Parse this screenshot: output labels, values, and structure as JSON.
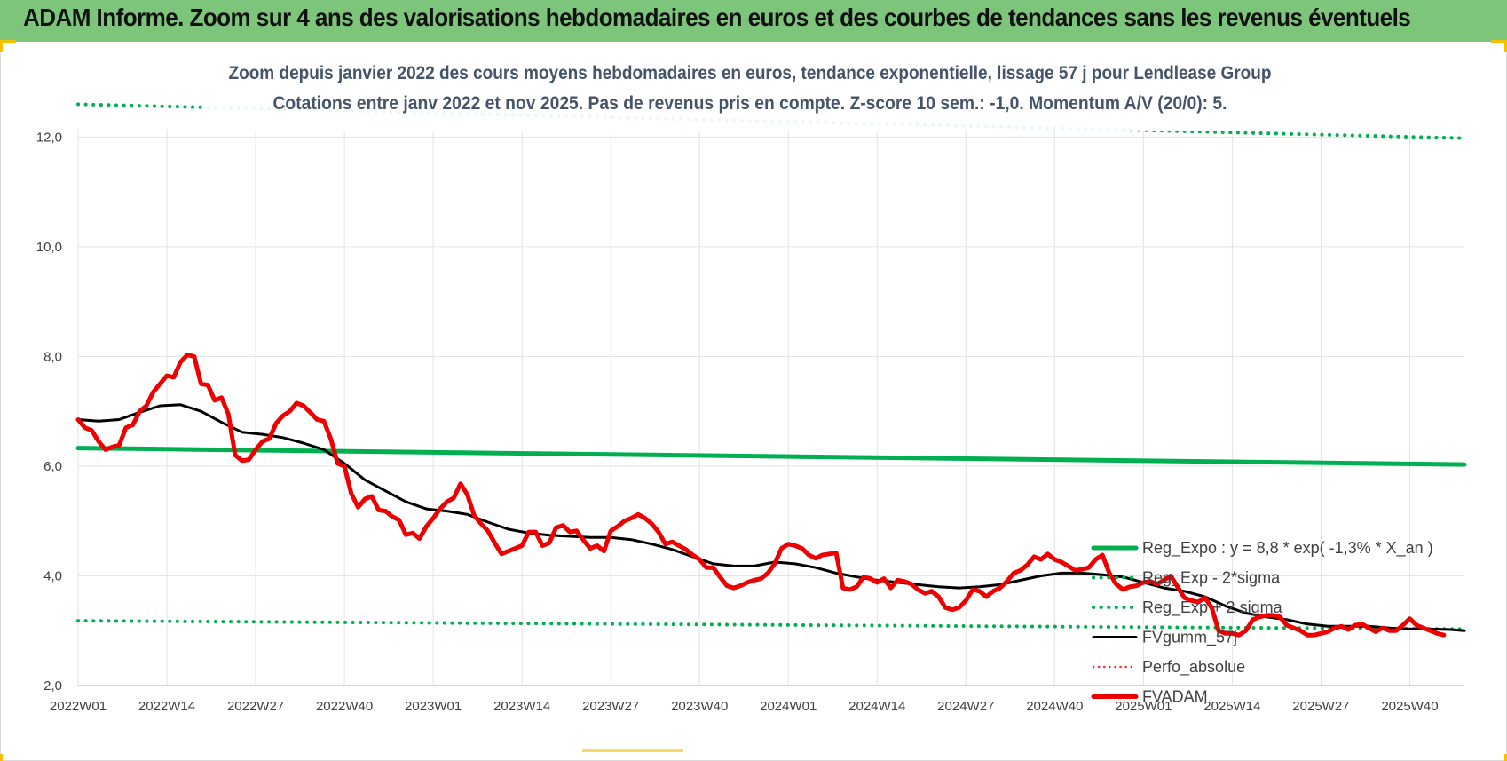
{
  "banner": {
    "title": "ADAM Informe. Zoom sur 4 ans des valorisations hebdomadaires en euros et des courbes de tendances sans les revenus éventuels"
  },
  "colors": {
    "banner": "#7dc57a",
    "regression": "#00b050",
    "price": "#ee0000",
    "smooth": "#000000",
    "perf": "#ee3333",
    "accent": "#f2c200"
  },
  "chart_data": {
    "type": "line",
    "title": "Zoom depuis janvier 2022 des cours moyens hebdomadaires en euros, tendance exponentielle, lissage 57 j pour Lendlease Group",
    "subtitle": "Cotations entre janv 2022 et nov 2025. Pas de revenus pris en compte. Z-score 10 sem.: -1,0. Momentum A/V (20/0): 5.",
    "xlabel": "",
    "ylabel": "",
    "ylim": [
      2.0,
      12.8
    ],
    "yticks": [
      "2,0",
      "4,0",
      "6,0",
      "8,0",
      "10,0",
      "12,0"
    ],
    "ytick_values": [
      2,
      4,
      6,
      8,
      10,
      12
    ],
    "x_range": [
      0,
      203
    ],
    "xticks": [
      {
        "label": "2022W01",
        "x": 0
      },
      {
        "label": "2022W14",
        "x": 13
      },
      {
        "label": "2022W27",
        "x": 26
      },
      {
        "label": "2022W40",
        "x": 39
      },
      {
        "label": "2023W01",
        "x": 52
      },
      {
        "label": "2023W14",
        "x": 65
      },
      {
        "label": "2023W27",
        "x": 78
      },
      {
        "label": "2023W40",
        "x": 91
      },
      {
        "label": "2024W01",
        "x": 104
      },
      {
        "label": "2024W14",
        "x": 117
      },
      {
        "label": "2024W27",
        "x": 130
      },
      {
        "label": "2024W40",
        "x": 143
      },
      {
        "label": "2025W01",
        "x": 156
      },
      {
        "label": "2025W14",
        "x": 169
      },
      {
        "label": "2025W27",
        "x": 182
      },
      {
        "label": "2025W40",
        "x": 195
      }
    ],
    "grid": true,
    "legend_position": "right",
    "series": [
      {
        "name": "Reg_Expo : y = 8,8 * exp( -1,3% *  X_an )",
        "style": "solid-thick",
        "color": "#00b050",
        "points": [
          [
            0,
            6.33
          ],
          [
            203,
            6.03
          ]
        ]
      },
      {
        "name": "Reg_Exp - 2*sigma",
        "style": "dotted",
        "color": "#00b050",
        "points": [
          [
            0,
            3.18
          ],
          [
            203,
            3.03
          ]
        ]
      },
      {
        "name": "Reg_Exp + 2 sigma",
        "style": "dotted",
        "color": "#00b050",
        "points": [
          [
            0,
            12.6
          ],
          [
            203,
            11.98
          ]
        ]
      },
      {
        "name": "FVgumm_57j",
        "style": "solid",
        "color": "#000000",
        "points": [
          [
            0,
            6.85
          ],
          [
            3,
            6.82
          ],
          [
            6,
            6.85
          ],
          [
            9,
            6.98
          ],
          [
            12,
            7.1
          ],
          [
            15,
            7.12
          ],
          [
            18,
            7.0
          ],
          [
            21,
            6.8
          ],
          [
            24,
            6.62
          ],
          [
            27,
            6.58
          ],
          [
            30,
            6.52
          ],
          [
            33,
            6.42
          ],
          [
            36,
            6.3
          ],
          [
            39,
            6.05
          ],
          [
            42,
            5.75
          ],
          [
            45,
            5.55
          ],
          [
            48,
            5.35
          ],
          [
            51,
            5.22
          ],
          [
            54,
            5.18
          ],
          [
            57,
            5.12
          ],
          [
            60,
            4.98
          ],
          [
            63,
            4.85
          ],
          [
            66,
            4.78
          ],
          [
            69,
            4.74
          ],
          [
            72,
            4.72
          ],
          [
            75,
            4.7
          ],
          [
            78,
            4.7
          ],
          [
            81,
            4.66
          ],
          [
            84,
            4.58
          ],
          [
            87,
            4.48
          ],
          [
            90,
            4.35
          ],
          [
            93,
            4.22
          ],
          [
            96,
            4.18
          ],
          [
            99,
            4.18
          ],
          [
            102,
            4.25
          ],
          [
            105,
            4.22
          ],
          [
            108,
            4.15
          ],
          [
            111,
            4.05
          ],
          [
            114,
            3.98
          ],
          [
            117,
            3.92
          ],
          [
            120,
            3.88
          ],
          [
            123,
            3.84
          ],
          [
            126,
            3.8
          ],
          [
            129,
            3.78
          ],
          [
            132,
            3.8
          ],
          [
            135,
            3.84
          ],
          [
            138,
            3.92
          ],
          [
            141,
            4.0
          ],
          [
            144,
            4.05
          ],
          [
            147,
            4.05
          ],
          [
            150,
            4.02
          ],
          [
            153,
            3.98
          ],
          [
            156,
            3.88
          ],
          [
            159,
            3.78
          ],
          [
            162,
            3.72
          ],
          [
            165,
            3.62
          ],
          [
            168,
            3.45
          ],
          [
            171,
            3.32
          ],
          [
            174,
            3.25
          ],
          [
            177,
            3.2
          ],
          [
            180,
            3.12
          ],
          [
            183,
            3.08
          ],
          [
            186,
            3.08
          ],
          [
            189,
            3.08
          ],
          [
            192,
            3.05
          ],
          [
            195,
            3.03
          ],
          [
            198,
            3.03
          ],
          [
            201,
            3.02
          ],
          [
            203,
            3.0
          ]
        ]
      },
      {
        "name": "Perfo_absolue",
        "style": "dotted-thin",
        "color": "#ee3333",
        "points": []
      },
      {
        "name": "FVADAM",
        "style": "solid-thick",
        "color": "#ee0000",
        "points": [
          [
            0,
            6.85
          ],
          [
            1,
            6.7
          ],
          [
            2,
            6.65
          ],
          [
            3,
            6.45
          ],
          [
            4,
            6.3
          ],
          [
            5,
            6.35
          ],
          [
            6,
            6.38
          ],
          [
            7,
            6.7
          ],
          [
            8,
            6.75
          ],
          [
            9,
            7.0
          ],
          [
            10,
            7.1
          ],
          [
            11,
            7.35
          ],
          [
            12,
            7.5
          ],
          [
            13,
            7.65
          ],
          [
            14,
            7.62
          ],
          [
            15,
            7.9
          ],
          [
            16,
            8.03
          ],
          [
            17,
            8.0
          ],
          [
            18,
            7.5
          ],
          [
            19,
            7.48
          ],
          [
            20,
            7.2
          ],
          [
            21,
            7.25
          ],
          [
            22,
            6.95
          ],
          [
            23,
            6.2
          ],
          [
            24,
            6.1
          ],
          [
            25,
            6.12
          ],
          [
            26,
            6.3
          ],
          [
            27,
            6.45
          ],
          [
            28,
            6.5
          ],
          [
            29,
            6.78
          ],
          [
            30,
            6.92
          ],
          [
            31,
            7.0
          ],
          [
            32,
            7.15
          ],
          [
            33,
            7.1
          ],
          [
            34,
            6.98
          ],
          [
            35,
            6.85
          ],
          [
            36,
            6.82
          ],
          [
            37,
            6.5
          ],
          [
            38,
            6.05
          ],
          [
            39,
            6.0
          ],
          [
            40,
            5.5
          ],
          [
            41,
            5.25
          ],
          [
            42,
            5.4
          ],
          [
            43,
            5.45
          ],
          [
            44,
            5.2
          ],
          [
            45,
            5.18
          ],
          [
            46,
            5.08
          ],
          [
            47,
            5.02
          ],
          [
            48,
            4.75
          ],
          [
            49,
            4.78
          ],
          [
            50,
            4.68
          ],
          [
            51,
            4.9
          ],
          [
            52,
            5.05
          ],
          [
            53,
            5.22
          ],
          [
            54,
            5.35
          ],
          [
            55,
            5.42
          ],
          [
            56,
            5.68
          ],
          [
            57,
            5.48
          ],
          [
            58,
            5.1
          ],
          [
            59,
            4.95
          ],
          [
            60,
            4.82
          ],
          [
            61,
            4.6
          ],
          [
            62,
            4.4
          ],
          [
            63,
            4.45
          ],
          [
            64,
            4.5
          ],
          [
            65,
            4.55
          ],
          [
            66,
            4.8
          ],
          [
            67,
            4.8
          ],
          [
            68,
            4.55
          ],
          [
            69,
            4.6
          ],
          [
            70,
            4.88
          ],
          [
            71,
            4.92
          ],
          [
            72,
            4.8
          ],
          [
            73,
            4.82
          ],
          [
            74,
            4.65
          ],
          [
            75,
            4.5
          ],
          [
            76,
            4.55
          ],
          [
            77,
            4.45
          ],
          [
            78,
            4.82
          ],
          [
            79,
            4.9
          ],
          [
            80,
            5.0
          ],
          [
            81,
            5.05
          ],
          [
            82,
            5.12
          ],
          [
            83,
            5.05
          ],
          [
            84,
            4.95
          ],
          [
            85,
            4.8
          ],
          [
            86,
            4.58
          ],
          [
            87,
            4.62
          ],
          [
            88,
            4.55
          ],
          [
            89,
            4.48
          ],
          [
            90,
            4.38
          ],
          [
            91,
            4.3
          ],
          [
            92,
            4.15
          ],
          [
            93,
            4.15
          ],
          [
            94,
            3.98
          ],
          [
            95,
            3.82
          ],
          [
            96,
            3.78
          ],
          [
            97,
            3.82
          ],
          [
            98,
            3.88
          ],
          [
            99,
            3.92
          ],
          [
            100,
            3.95
          ],
          [
            101,
            4.05
          ],
          [
            102,
            4.22
          ],
          [
            103,
            4.5
          ],
          [
            104,
            4.58
          ],
          [
            105,
            4.55
          ],
          [
            106,
            4.5
          ],
          [
            107,
            4.38
          ],
          [
            108,
            4.32
          ],
          [
            109,
            4.38
          ],
          [
            110,
            4.4
          ],
          [
            111,
            4.42
          ],
          [
            112,
            3.78
          ],
          [
            113,
            3.75
          ],
          [
            114,
            3.8
          ],
          [
            115,
            3.98
          ],
          [
            116,
            3.95
          ],
          [
            117,
            3.88
          ],
          [
            118,
            3.95
          ],
          [
            119,
            3.78
          ],
          [
            120,
            3.92
          ],
          [
            121,
            3.9
          ],
          [
            122,
            3.85
          ],
          [
            123,
            3.75
          ],
          [
            124,
            3.68
          ],
          [
            125,
            3.72
          ],
          [
            126,
            3.62
          ],
          [
            127,
            3.42
          ],
          [
            128,
            3.38
          ],
          [
            129,
            3.42
          ],
          [
            130,
            3.55
          ],
          [
            131,
            3.75
          ],
          [
            132,
            3.72
          ],
          [
            133,
            3.62
          ],
          [
            134,
            3.72
          ],
          [
            135,
            3.78
          ],
          [
            136,
            3.9
          ],
          [
            137,
            4.05
          ],
          [
            138,
            4.1
          ],
          [
            139,
            4.2
          ],
          [
            140,
            4.35
          ],
          [
            141,
            4.3
          ],
          [
            142,
            4.4
          ],
          [
            143,
            4.3
          ],
          [
            144,
            4.25
          ],
          [
            145,
            4.18
          ],
          [
            146,
            4.1
          ],
          [
            147,
            4.12
          ],
          [
            148,
            4.15
          ],
          [
            149,
            4.3
          ],
          [
            150,
            4.38
          ],
          [
            151,
            4.05
          ],
          [
            152,
            3.85
          ],
          [
            153,
            3.75
          ],
          [
            154,
            3.8
          ],
          [
            155,
            3.82
          ],
          [
            156,
            3.88
          ],
          [
            157,
            3.9
          ],
          [
            158,
            3.85
          ],
          [
            159,
            3.92
          ],
          [
            160,
            4.0
          ],
          [
            161,
            3.8
          ],
          [
            162,
            3.6
          ],
          [
            163,
            3.55
          ],
          [
            164,
            3.52
          ],
          [
            165,
            3.6
          ],
          [
            166,
            3.42
          ],
          [
            167,
            3.0
          ],
          [
            168,
            2.95
          ],
          [
            169,
            2.95
          ],
          [
            170,
            2.92
          ],
          [
            171,
            3.0
          ],
          [
            172,
            3.2
          ],
          [
            173,
            3.25
          ],
          [
            174,
            3.28
          ],
          [
            175,
            3.28
          ],
          [
            176,
            3.25
          ],
          [
            177,
            3.1
          ],
          [
            178,
            3.05
          ],
          [
            179,
            3.0
          ],
          [
            180,
            2.92
          ],
          [
            181,
            2.92
          ],
          [
            182,
            2.95
          ],
          [
            183,
            2.98
          ],
          [
            184,
            3.05
          ],
          [
            185,
            3.08
          ],
          [
            186,
            3.02
          ],
          [
            187,
            3.1
          ],
          [
            188,
            3.12
          ],
          [
            189,
            3.05
          ],
          [
            190,
            2.98
          ],
          [
            191,
            3.05
          ],
          [
            192,
            3.0
          ],
          [
            193,
            3.0
          ],
          [
            194,
            3.1
          ],
          [
            195,
            3.22
          ],
          [
            196,
            3.1
          ],
          [
            197,
            3.05
          ],
          [
            198,
            3.0
          ],
          [
            199,
            2.95
          ],
          [
            200,
            2.92
          ]
        ]
      }
    ]
  }
}
